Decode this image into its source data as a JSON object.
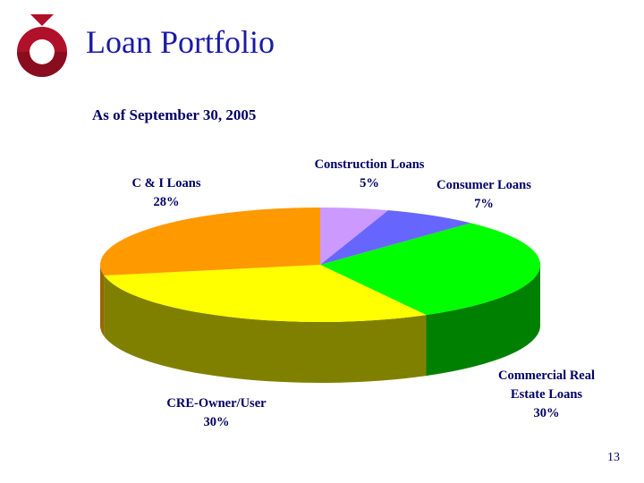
{
  "slide": {
    "title": "Loan Portfolio",
    "subtitle": "As of September 30, 2005",
    "page_number": "13",
    "logo_colors": {
      "outer": "#b0102a",
      "inner": "#8a0c1f"
    }
  },
  "chart_data": {
    "type": "pie",
    "style": "3d",
    "slices": [
      {
        "label": [
          "Construction Loans",
          "5%"
        ],
        "value": 5,
        "color": "#cc99ff",
        "side": "#7a5c99"
      },
      {
        "label": [
          "Consumer Loans",
          "7%"
        ],
        "value": 7,
        "color": "#6666ff",
        "side": "#333399"
      },
      {
        "label": [
          "Commercial Real",
          "Estate Loans",
          "30%"
        ],
        "value": 30,
        "color": "#00ff00",
        "side": "#008000"
      },
      {
        "label": [
          "CRE-Owner/User",
          "30%"
        ],
        "value": 30,
        "color": "#ffff00",
        "side": "#808000"
      },
      {
        "label": [
          "C & I Loans",
          "28%"
        ],
        "value": 28,
        "color": "#ff9900",
        "side": "#996600"
      }
    ]
  }
}
